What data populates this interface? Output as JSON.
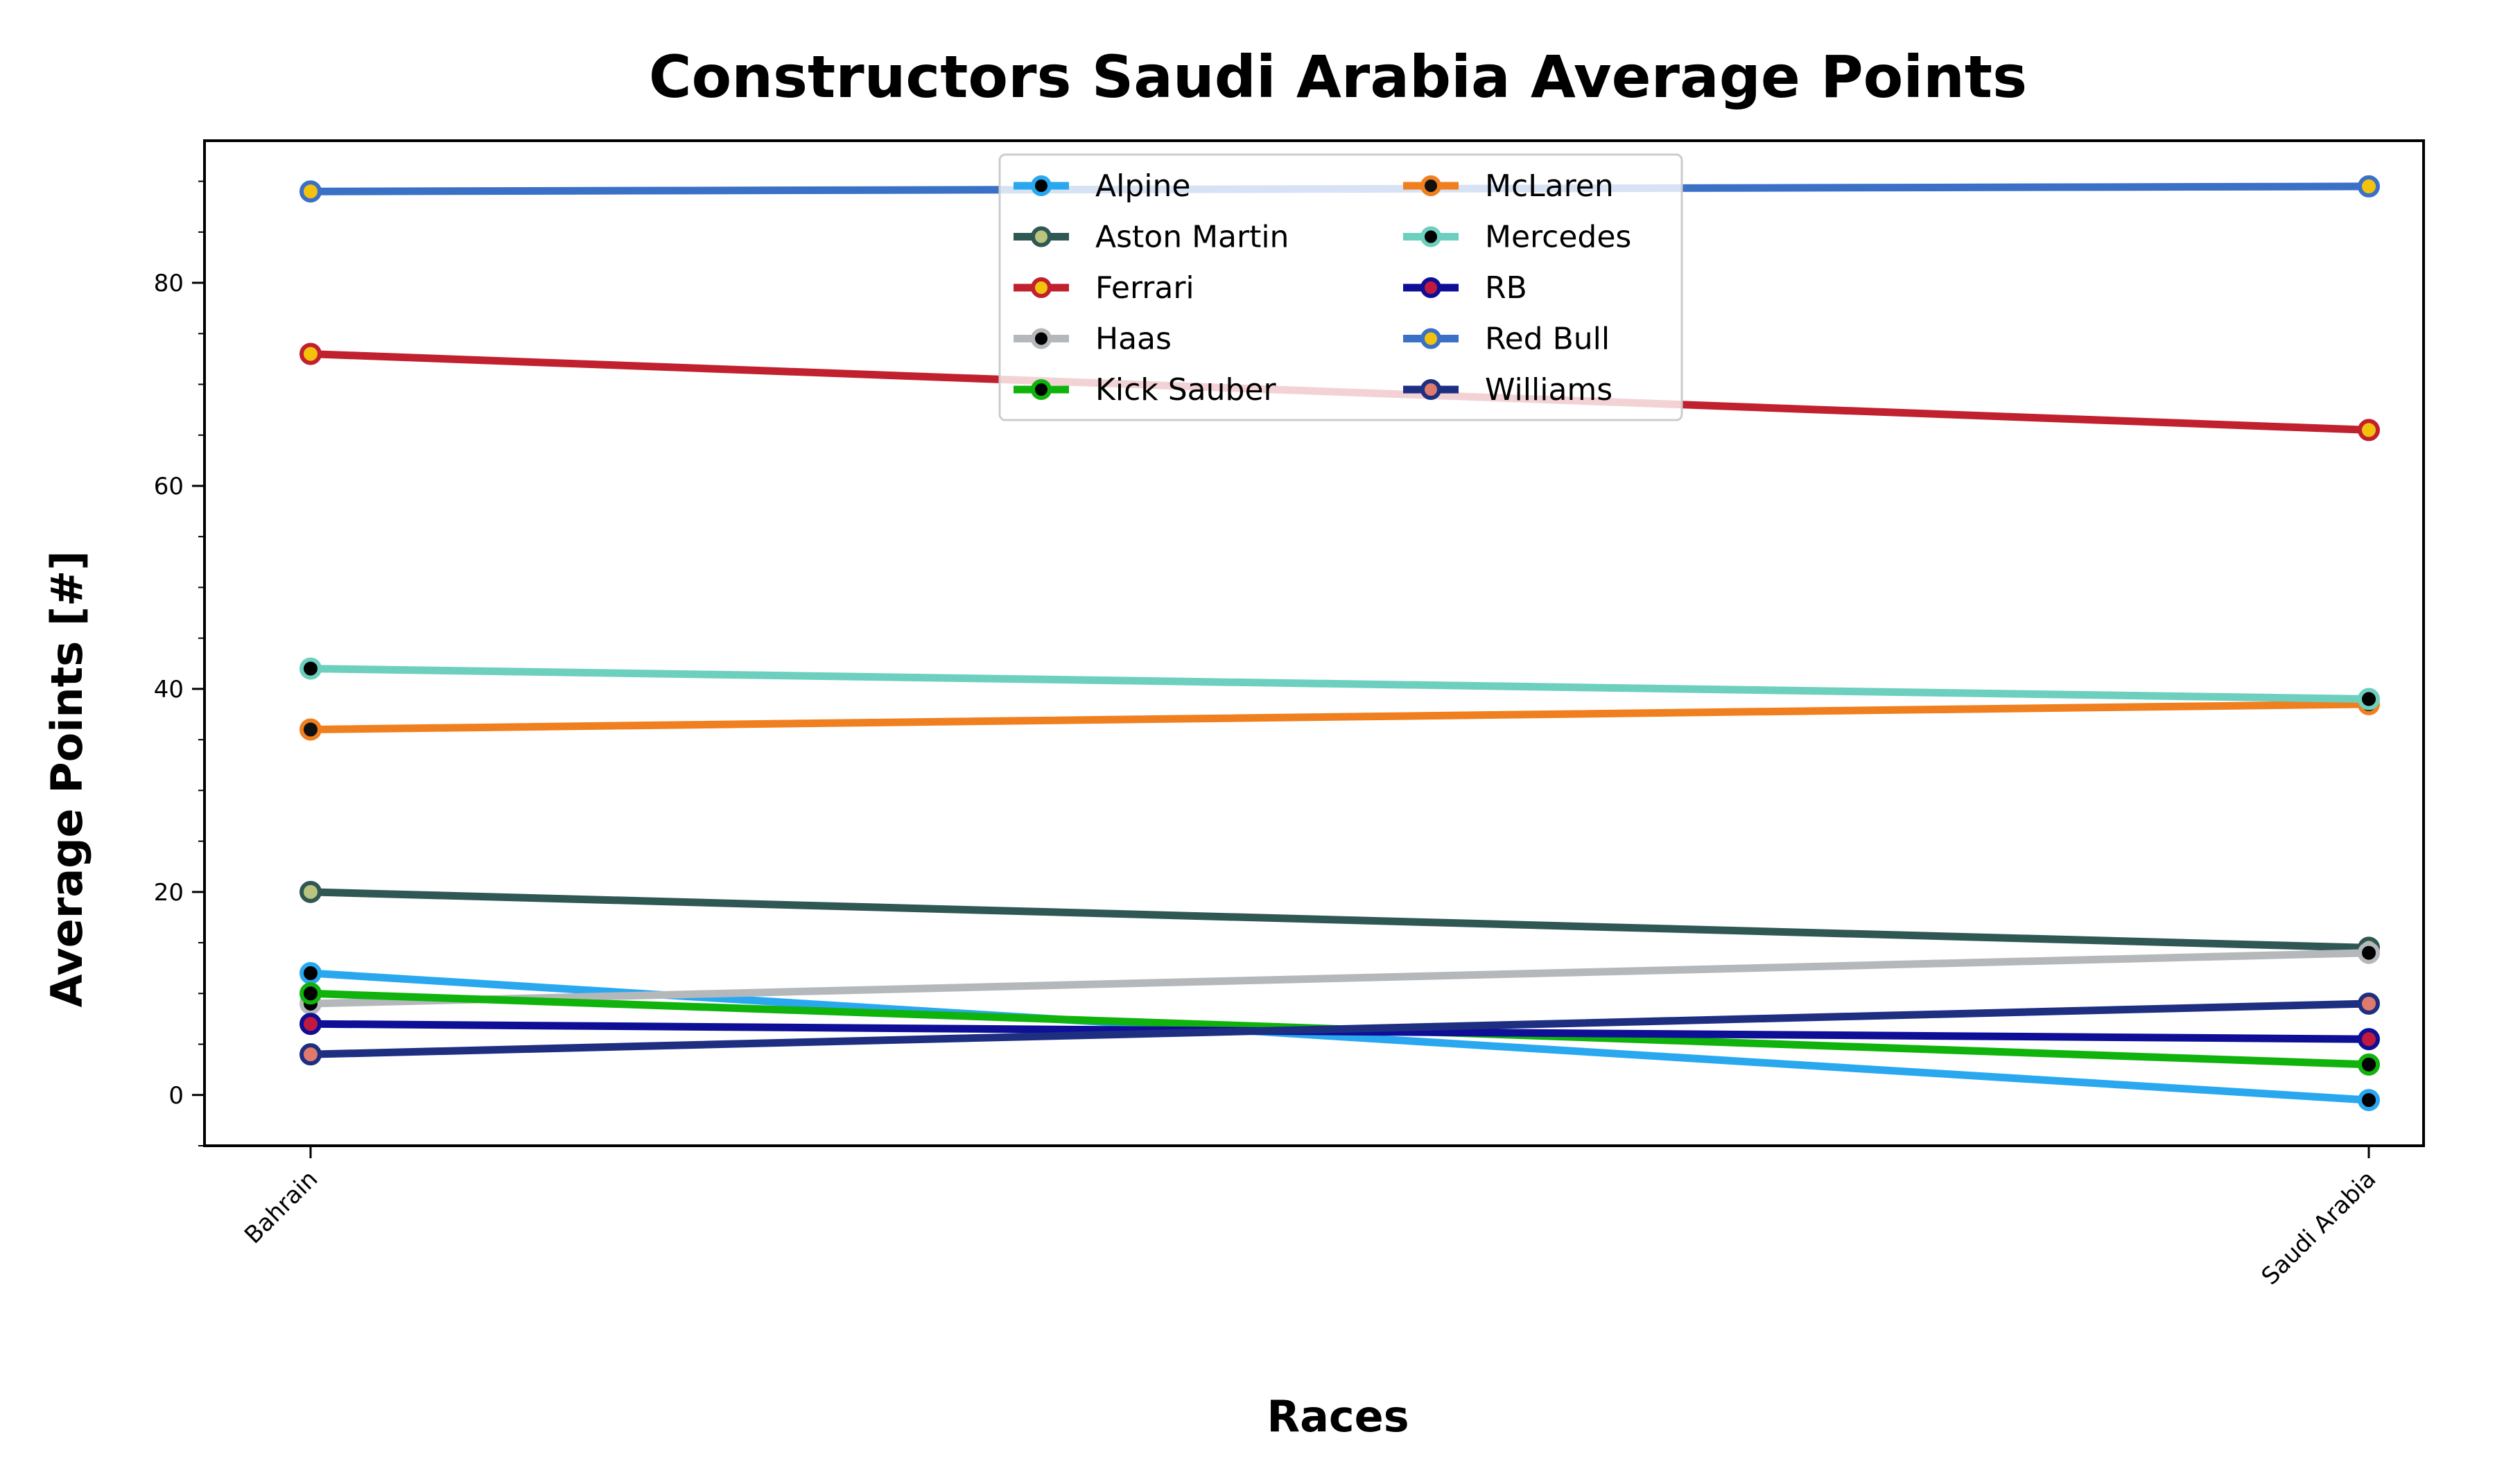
{
  "chart_data": {
    "type": "line",
    "title": "Constructors Saudi Arabia Average Points",
    "xlabel": "Races",
    "ylabel": "Average Points [#]",
    "categories": [
      "Bahrain",
      "Saudi Arabia"
    ],
    "ylim": [
      -5,
      94
    ],
    "yticks": [
      0,
      20,
      40,
      60,
      80
    ],
    "grid": false,
    "legend_position": "upper-center",
    "series": [
      {
        "name": "Alpine",
        "values": [
          12,
          -0.5
        ],
        "color": "#29a8f0",
        "marker_face": "#000000"
      },
      {
        "name": "Aston Martin",
        "values": [
          20,
          14.5
        ],
        "color": "#2f5753",
        "marker_face": "#b9c47e"
      },
      {
        "name": "Ferrari",
        "values": [
          73,
          65.5
        ],
        "color": "#c1202e",
        "marker_face": "#f4c20d"
      },
      {
        "name": "Haas",
        "values": [
          9,
          14
        ],
        "color": "#b5b8bb",
        "marker_face": "#000000"
      },
      {
        "name": "Kick Sauber",
        "values": [
          10,
          3
        ],
        "color": "#10b30c",
        "marker_face": "#000000"
      },
      {
        "name": "McLaren",
        "values": [
          36,
          38.5
        ],
        "color": "#f07f20",
        "marker_face": "#111111"
      },
      {
        "name": "Mercedes",
        "values": [
          42,
          39
        ],
        "color": "#6dcfbe",
        "marker_face": "#000000"
      },
      {
        "name": "RB",
        "values": [
          7,
          5.5
        ],
        "color": "#0e0e96",
        "marker_face": "#c21a3e"
      },
      {
        "name": "Red Bull",
        "values": [
          89,
          89.5
        ],
        "color": "#3a71c6",
        "marker_face": "#f4c20d"
      },
      {
        "name": "Williams",
        "values": [
          4,
          9
        ],
        "color": "#1e2f82",
        "marker_face": "#e07a6c"
      }
    ]
  }
}
